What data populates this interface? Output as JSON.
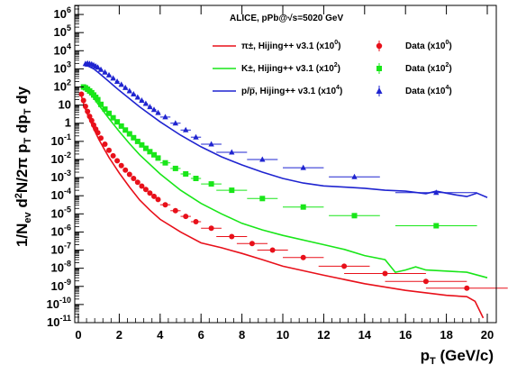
{
  "chart_data": {
    "type": "line",
    "title": "ALICE, pPb@√s=5020 GeV",
    "xlabel": "p_T (GeV/c)",
    "ylabel": "1/N_ev d^2N/2π p_T dp_T dy",
    "x_ticks": [
      "0",
      "2",
      "4",
      "6",
      "8",
      "10",
      "12",
      "14",
      "16",
      "18",
      "20"
    ],
    "y_ticks": [
      "10^-11",
      "10^-10",
      "10^-9",
      "10^-8",
      "10^-7",
      "10^-6",
      "10^-5",
      "10^-4",
      "10^-3",
      "10^-2",
      "10^-1",
      "1",
      "10",
      "10^2",
      "10^3",
      "10^4",
      "10^5",
      "10^6"
    ],
    "xlim": [
      0,
      20
    ],
    "ylim_log10": [
      -11,
      6.5
    ],
    "log_y": true,
    "grid": false,
    "legend_position": "top-right",
    "series": [
      {
        "name": "π±, Hijing++ v3.1  (x10^0)",
        "kind": "model",
        "color": "#e8101a",
        "x": [
          0.1,
          0.2,
          0.3,
          0.5,
          0.75,
          1.0,
          1.25,
          1.5,
          2.0,
          2.5,
          3.0,
          3.5,
          4.0,
          5.0,
          6.0,
          7.0,
          8.0,
          9.0,
          10.0,
          12.0,
          14.0,
          16.0,
          18.0,
          19.0,
          19.4,
          19.8
        ],
        "y": [
          50,
          20,
          8,
          2.2,
          0.5,
          0.13,
          0.04,
          0.013,
          0.0018,
          0.0003,
          5.8e-05,
          1.6e-05,
          5e-06,
          1e-06,
          2.5e-07,
          1.35e-07,
          6.6e-08,
          3e-08,
          1.3e-08,
          4.1e-09,
          1.4e-09,
          6e-10,
          3.2e-10,
          2.7e-10,
          1.5e-10,
          1.8e-11
        ]
      },
      {
        "name": "Data (x10^0)",
        "kind": "data",
        "marker": "circle",
        "color": "#e8101a",
        "x": [
          0.15,
          0.25,
          0.35,
          0.45,
          0.55,
          0.65,
          0.75,
          0.85,
          0.95,
          1.1,
          1.3,
          1.5,
          1.7,
          1.9,
          2.1,
          2.3,
          2.5,
          2.7,
          2.9,
          3.1,
          3.3,
          3.5,
          3.7,
          3.9,
          4.25,
          4.75,
          5.25,
          5.75,
          6.5,
          7.5,
          8.5,
          9.5,
          11.0,
          13.0,
          15.0,
          17.0,
          19.0
        ],
        "y": [
          40,
          18,
          8.5,
          4.5,
          2.4,
          1.4,
          0.8,
          0.48,
          0.3,
          0.15,
          0.07,
          0.032,
          0.016,
          0.0085,
          0.0046,
          0.0026,
          0.0015,
          0.0009,
          0.00055,
          0.00034,
          0.00022,
          0.00014,
          9.2e-05,
          6.2e-05,
          3.2e-05,
          1.5e-05,
          7.3e-06,
          3.7e-06,
          1.6e-06,
          5.6e-07,
          2.3e-07,
          1e-07,
          3.9e-08,
          1.3e-08,
          5.1e-09,
          1.9e-09,
          8e-10
        ]
      },
      {
        "name": "K±, Hijing++ v3.1  (x10^2)",
        "kind": "model",
        "color": "#19e619",
        "x": [
          0.2,
          0.3,
          0.5,
          0.75,
          1.0,
          1.5,
          2.0,
          2.5,
          3.0,
          4.0,
          5.0,
          6.0,
          7.0,
          8.0,
          9.0,
          10.0,
          12.0,
          13.0,
          14.0,
          15.0,
          15.5,
          16.0,
          16.5,
          17.0,
          18.0,
          19.0,
          20.0
        ],
        "y": [
          95,
          85,
          55,
          25,
          10,
          1.8,
          0.35,
          0.075,
          0.018,
          0.0016,
          0.0002,
          3.8e-05,
          1e-05,
          3e-06,
          1.3e-06,
          6.5e-07,
          2e-07,
          1.1e-07,
          5e-08,
          3e-08,
          6e-09,
          8e-09,
          1.2e-08,
          8e-09,
          7e-09,
          6e-09,
          3e-09
        ]
      },
      {
        "name": "Data (x10^2)",
        "kind": "data",
        "marker": "square",
        "color": "#19e619",
        "x": [
          0.25,
          0.35,
          0.45,
          0.55,
          0.65,
          0.75,
          0.85,
          0.95,
          1.1,
          1.3,
          1.5,
          1.7,
          1.9,
          2.1,
          2.3,
          2.5,
          2.7,
          2.9,
          3.1,
          3.3,
          3.5,
          3.7,
          3.9,
          4.25,
          4.75,
          5.25,
          5.75,
          6.5,
          7.5,
          9.0,
          11.0,
          13.5,
          17.5
        ],
        "y": [
          100,
          90,
          75,
          60,
          48,
          36,
          27,
          20,
          11,
          6,
          3.5,
          2,
          1.2,
          0.7,
          0.42,
          0.26,
          0.16,
          0.1,
          0.064,
          0.041,
          0.027,
          0.018,
          0.012,
          0.0065,
          0.0032,
          0.0016,
          0.0009,
          0.00045,
          0.0002,
          7e-05,
          2.4e-05,
          8e-06,
          2.2e-06
        ]
      },
      {
        "name": "p/p̅, Hijing++ v3.1  (x10^4)",
        "kind": "model",
        "color": "#1f24d0",
        "x": [
          0.3,
          0.5,
          0.75,
          1.0,
          1.5,
          2.0,
          3.0,
          4.0,
          5.0,
          6.0,
          7.0,
          8.0,
          9.0,
          10.0,
          11.0,
          12.0,
          13.0,
          14.0,
          15.0,
          16.0,
          17.0,
          17.5,
          18.0,
          18.5,
          19.0,
          19.5,
          20.0
        ],
        "y": [
          1500,
          1400,
          1000,
          600,
          200,
          65,
          8,
          1.2,
          0.22,
          0.05,
          0.014,
          0.005,
          0.002,
          0.0009,
          0.0005,
          0.00035,
          0.0003,
          0.00026,
          0.0002,
          0.00018,
          0.00013,
          0.00018,
          0.00014,
          0.00011,
          9e-05,
          0.00014,
          8e-05
        ]
      },
      {
        "name": "Data (x10^4)",
        "kind": "data",
        "marker": "triangle",
        "color": "#1f24d0",
        "x": [
          0.35,
          0.45,
          0.55,
          0.65,
          0.75,
          0.85,
          0.95,
          1.1,
          1.3,
          1.5,
          1.7,
          1.9,
          2.1,
          2.3,
          2.5,
          2.7,
          2.9,
          3.1,
          3.3,
          3.5,
          3.7,
          3.9,
          4.25,
          4.75,
          5.25,
          5.75,
          6.5,
          7.5,
          9.0,
          11.0,
          13.5,
          17.5
        ],
        "y": [
          1900,
          2000,
          1900,
          1800,
          1600,
          1400,
          1200,
          900,
          650,
          450,
          300,
          200,
          135,
          90,
          60,
          40,
          27,
          18,
          12,
          8,
          5.6,
          3.8,
          2.2,
          1,
          0.42,
          0.17,
          0.07,
          0.025,
          0.01,
          0.0035,
          0.0011,
          0.00015
        ]
      }
    ]
  }
}
